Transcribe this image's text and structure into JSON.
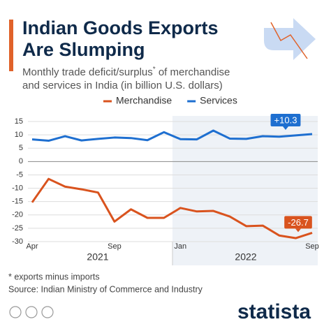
{
  "chart_data": {
    "type": "line",
    "title_lines": [
      "Indian Goods Exports",
      "Are Slumping"
    ],
    "subtitle_lines": [
      "Monthly trade deficit/surplus",
      "*",
      " of merchandise",
      "and services in India (in billion U.S. dollars)"
    ],
    "categories": [
      "Apr",
      null,
      null,
      null,
      null,
      "Sep",
      null,
      null,
      null,
      "Jan",
      null,
      null,
      null,
      null,
      null,
      null,
      null,
      "Sep"
    ],
    "year_labels": [
      "2021",
      "2022"
    ],
    "series": [
      {
        "name": "Merchandise",
        "color": "#d9531e",
        "values": [
          -15.3,
          -6.5,
          -9.4,
          -10.4,
          -11.6,
          -22.5,
          -17.9,
          -21.1,
          -21.1,
          -17.4,
          -18.7,
          -18.5,
          -20.6,
          -24.2,
          -24.0,
          -27.7,
          -28.7,
          -26.7
        ]
      },
      {
        "name": "Services",
        "color": "#1e6fd0",
        "values": [
          8.3,
          7.8,
          9.5,
          7.9,
          8.5,
          9.0,
          8.8,
          8.0,
          11.0,
          8.4,
          8.3,
          11.6,
          8.6,
          8.5,
          9.5,
          9.3,
          9.8,
          10.3
        ],
        "value_labels": [
          null,
          null,
          null,
          null,
          null,
          null,
          null,
          null,
          null,
          null,
          null,
          null,
          null,
          null,
          null,
          null,
          null,
          "+10.3"
        ]
      }
    ],
    "ylim": [
      -30,
      15
    ],
    "yticks": [
      15,
      10,
      5,
      0,
      -5,
      -10,
      -15,
      -20,
      -25,
      -30
    ],
    "grid": true
  },
  "footer": {
    "note": "* exports minus imports",
    "source": "Source: Indian Ministry of Commerce and Industry",
    "brand": "statista"
  }
}
